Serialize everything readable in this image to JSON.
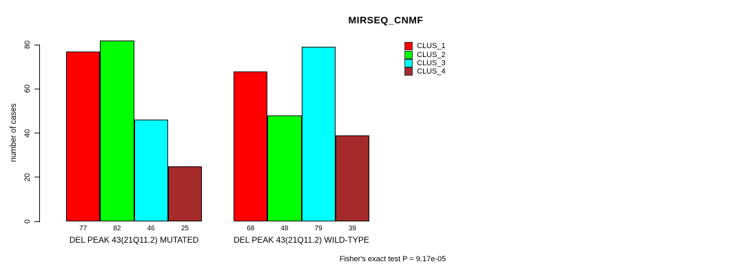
{
  "chart_data": {
    "type": "bar",
    "title": "MIRSEQ_CNMF",
    "ylabel": "number of cases",
    "xlabel": "",
    "ylim": [
      0,
      80
    ],
    "yticks": [
      0,
      20,
      40,
      60,
      80
    ],
    "grid": false,
    "legend_position": "top-right",
    "groups": [
      "DEL PEAK 43(21Q11.2) MUTATED",
      "DEL PEAK 43(21Q11.2) WILD-TYPE"
    ],
    "series": [
      {
        "name": "CLUS_1",
        "color": "#ff0000",
        "values": [
          77,
          68
        ]
      },
      {
        "name": "CLUS_2",
        "color": "#00ff00",
        "values": [
          82,
          48
        ]
      },
      {
        "name": "CLUS_3",
        "color": "#00ffff",
        "values": [
          46,
          79
        ]
      },
      {
        "name": "CLUS_4",
        "color": "#a52a2a",
        "values": [
          25,
          39
        ]
      }
    ],
    "bar_value_labels": [
      [
        77,
        82,
        46,
        25
      ],
      [
        68,
        48,
        79,
        39
      ]
    ],
    "footnote": "Fisher's exact test P = 9.17e-05"
  },
  "colors": {
    "background": "#ffffff",
    "axis": "#000000",
    "text": "#000000"
  }
}
